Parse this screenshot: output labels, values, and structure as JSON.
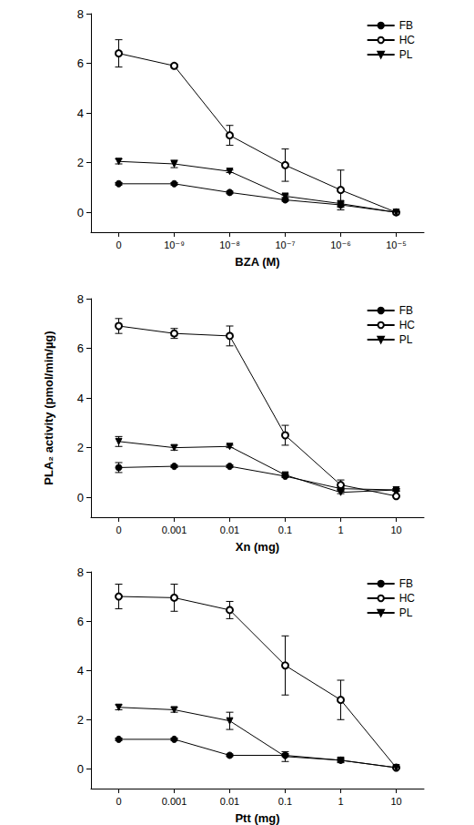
{
  "chart_data": [
    {
      "type": "line",
      "x_label": "BZA (M)",
      "categories": [
        "0",
        "10⁻⁹",
        "10⁻⁸",
        "10⁻⁷",
        "10⁻⁶",
        "10⁻⁵"
      ],
      "series": [
        {
          "name": "FB",
          "color": "#000000",
          "marker": "circle",
          "line_style": "solid",
          "values": [
            1.15,
            1.15,
            0.8,
            0.5,
            0.3,
            0
          ],
          "errors": [
            0.05,
            0.05,
            0.05,
            0.05,
            0.1,
            0
          ]
        },
        {
          "name": "HC",
          "color": "#000000",
          "marker": "open-circle",
          "line_style": "solid",
          "values": [
            6.4,
            5.9,
            3.1,
            1.9,
            0.9,
            0
          ],
          "errors": [
            0.55,
            0.05,
            0.4,
            0.65,
            0.8,
            0
          ]
        },
        {
          "name": "PL",
          "color": "#000000",
          "marker": "triangle-down",
          "line_style": "solid",
          "values": [
            2.05,
            1.95,
            1.65,
            0.65,
            0.35,
            0
          ],
          "errors": [
            0.1,
            0.15,
            0.05,
            0.05,
            0.1,
            0
          ]
        }
      ],
      "ylim": [
        -0.8,
        8
      ],
      "yticks": [
        0,
        2,
        4,
        6,
        8
      ],
      "grid": false,
      "legend": "top-right"
    },
    {
      "type": "line",
      "x_label": "Xn (mg)",
      "y_label": "PLA₂ activity (pmol/min/µg)",
      "categories": [
        "0",
        "0.001",
        "0.01",
        "0.1",
        "1",
        "10"
      ],
      "series": [
        {
          "name": "FB",
          "color": "#000000",
          "marker": "circle",
          "line_style": "solid",
          "values": [
            1.2,
            1.25,
            1.25,
            0.85,
            0.35,
            0.3
          ],
          "errors": [
            0.2,
            0.05,
            0.05,
            0.05,
            0.05,
            0.05
          ]
        },
        {
          "name": "HC",
          "color": "#000000",
          "marker": "open-circle",
          "line_style": "solid",
          "values": [
            6.9,
            6.6,
            6.5,
            2.5,
            0.5,
            0.05
          ],
          "errors": [
            0.3,
            0.2,
            0.4,
            0.4,
            0.2,
            0
          ]
        },
        {
          "name": "PL",
          "color": "#000000",
          "marker": "triangle-down",
          "line_style": "solid",
          "values": [
            2.25,
            2.0,
            2.05,
            0.9,
            0.2,
            0.3
          ],
          "errors": [
            0.2,
            0.1,
            0.05,
            0.05,
            0.05,
            0.05
          ]
        }
      ],
      "ylim": [
        -0.8,
        8
      ],
      "yticks": [
        0,
        2,
        4,
        6,
        8
      ],
      "grid": false,
      "legend": "top-right"
    },
    {
      "type": "line",
      "x_label": "Ptt (mg)",
      "categories": [
        "0",
        "0.001",
        "0.01",
        "0.1",
        "1",
        "10"
      ],
      "series": [
        {
          "name": "FB",
          "color": "#000000",
          "marker": "circle",
          "line_style": "solid",
          "values": [
            1.2,
            1.2,
            0.55,
            0.55,
            0.35,
            0.05
          ],
          "errors": [
            0.05,
            0.05,
            0.05,
            0.05,
            0.05,
            0
          ]
        },
        {
          "name": "HC",
          "color": "#000000",
          "marker": "open-circle",
          "line_style": "solid",
          "values": [
            7.0,
            6.95,
            6.45,
            4.2,
            2.8,
            0.05
          ],
          "errors": [
            0.5,
            0.55,
            0.35,
            1.2,
            0.8,
            0
          ]
        },
        {
          "name": "PL",
          "color": "#000000",
          "marker": "triangle-down",
          "line_style": "solid",
          "values": [
            2.5,
            2.4,
            1.95,
            0.5,
            0.35,
            0.05
          ],
          "errors": [
            0.1,
            0.1,
            0.35,
            0.2,
            0.1,
            0
          ]
        }
      ],
      "ylim": [
        -0.8,
        8
      ],
      "yticks": [
        0,
        2,
        4,
        6,
        8
      ],
      "grid": false,
      "legend": "top-right"
    }
  ]
}
